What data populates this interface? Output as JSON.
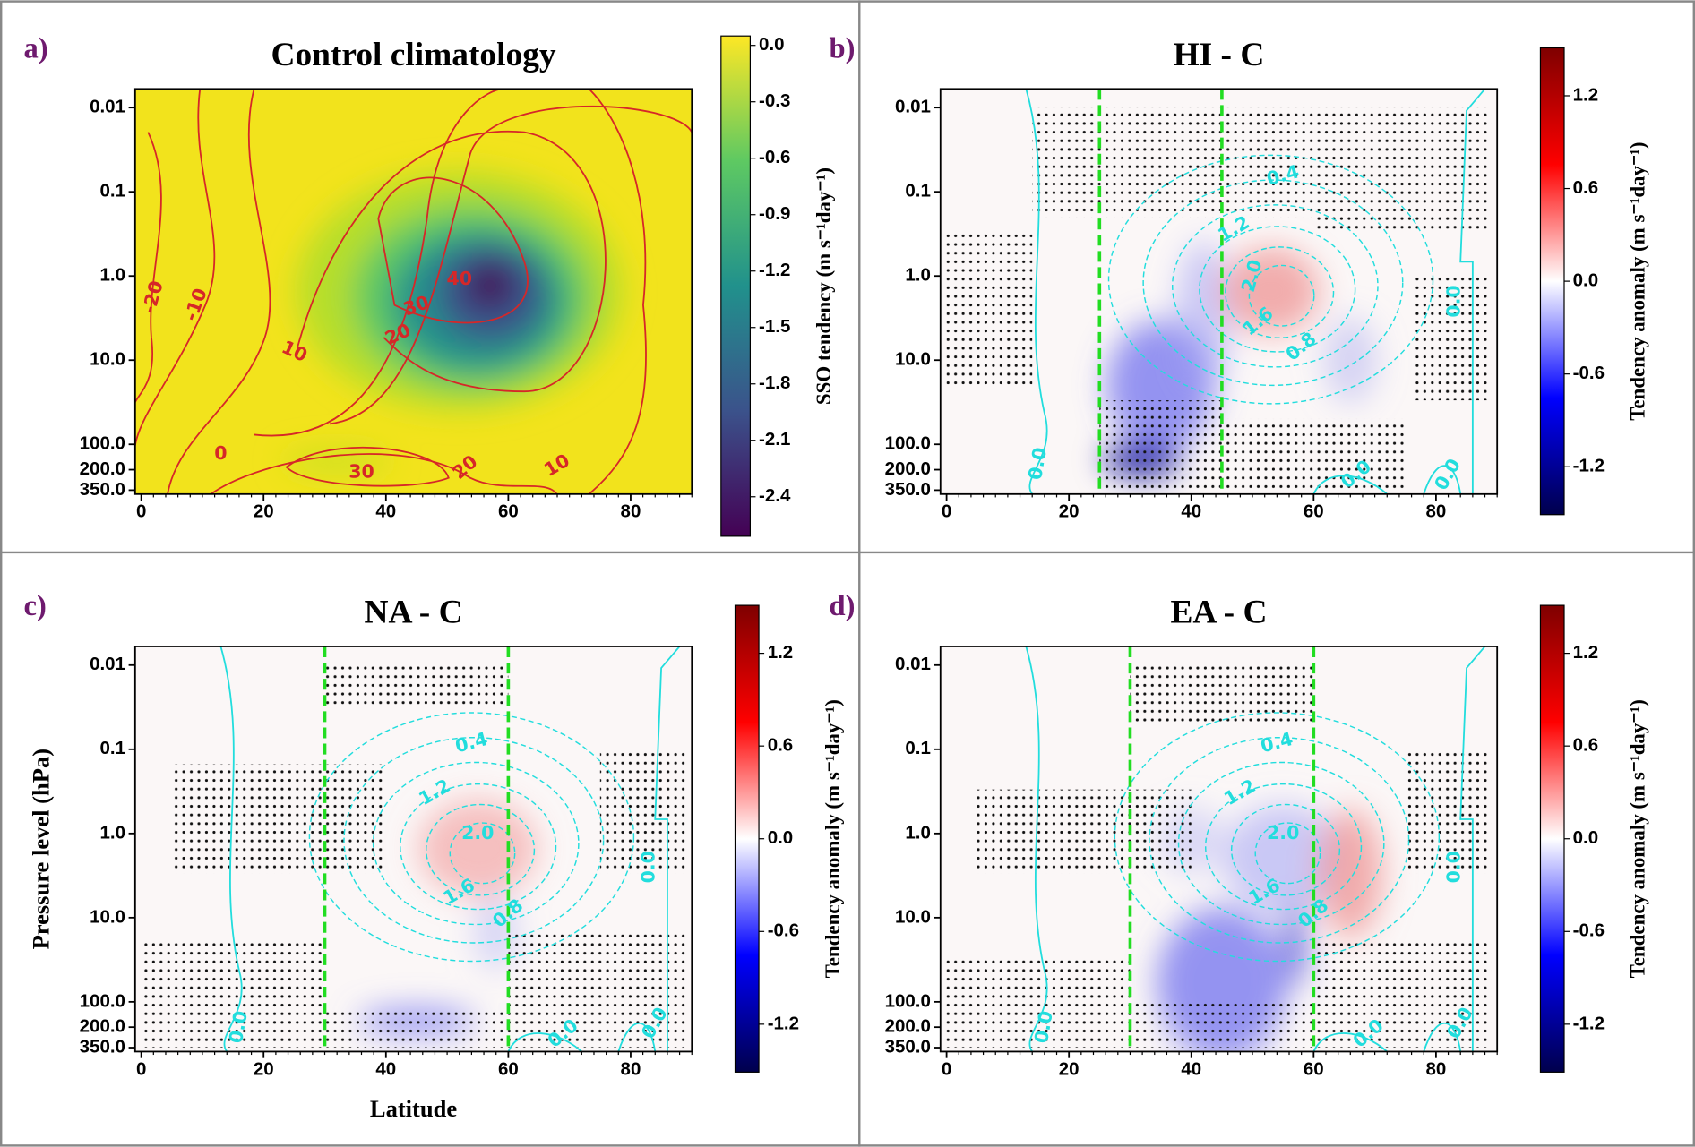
{
  "chart_data": [
    {
      "type": "contour",
      "panel_label": "a)",
      "title": "Control climatology",
      "xlim": [
        -1,
        90
      ],
      "xticks": [
        0,
        20,
        40,
        60,
        80
      ],
      "ylim": [
        390,
        0.006
      ],
      "log_y": true,
      "yticks": [
        0.01,
        0.1,
        {
          "value": 1,
          "label": "1.0"
        },
        {
          "value": 10,
          "label": "10.0"
        },
        {
          "value": 100,
          "label": "100.0"
        },
        {
          "value": 200,
          "label": "200.0"
        },
        {
          "value": 350,
          "label": "350.0"
        }
      ],
      "colorbar": {
        "label": "SSO tendency (m s⁻¹day⁻¹)",
        "colormap": "viridis",
        "lim": [
          -2.61,
          0.05
        ],
        "ticks": [
          {
            "value": 0,
            "label": "0.0"
          },
          -0.3,
          -0.6,
          -0.9,
          -1.2,
          -1.5,
          -1.8,
          -2.1,
          -2.4
        ]
      },
      "contour_color": "#d62728",
      "contour_labels": [
        -20,
        -10,
        10,
        20,
        30,
        40,
        0,
        30,
        20,
        10
      ]
    },
    {
      "type": "contour",
      "panel_label": "b)",
      "title": "HI - C",
      "xlim": [
        -1,
        90
      ],
      "xticks": [
        0,
        20,
        40,
        60,
        80
      ],
      "ylim": [
        390,
        0.006
      ],
      "log_y": true,
      "yticks": [
        0.01,
        0.1,
        {
          "value": 1,
          "label": "1.0"
        },
        {
          "value": 10,
          "label": "10.0"
        },
        {
          "value": 100,
          "label": "100.0"
        },
        {
          "value": 200,
          "label": "200.0"
        },
        {
          "value": 350,
          "label": "350.0"
        }
      ],
      "colorbar": {
        "label": "Tendency anomaly (m s⁻¹day⁻¹)",
        "colormap": "seismic",
        "lim": [
          -1.51,
          1.51
        ],
        "ticks": [
          1.2,
          0.6,
          {
            "value": 0,
            "label": "0.0"
          },
          -0.6,
          -1.2
        ]
      },
      "vlines": [
        25,
        45
      ],
      "vline_color": "#22dd22",
      "contour_color": "#22dddd",
      "contour_labels": [
        "0.4",
        "1.2",
        "2.0",
        "1.6",
        "0.8",
        "0.0",
        "0.0",
        "0.0",
        "0.0"
      ]
    },
    {
      "type": "contour",
      "panel_label": "c)",
      "title": "NA - C",
      "xlabel": "Latitude",
      "ylabel": "Pressure level (hPa)",
      "xlim": [
        -1,
        90
      ],
      "xticks": [
        0,
        20,
        40,
        60,
        80
      ],
      "ylim": [
        390,
        0.006
      ],
      "log_y": true,
      "yticks": [
        0.01,
        0.1,
        {
          "value": 1,
          "label": "1.0"
        },
        {
          "value": 10,
          "label": "10.0"
        },
        {
          "value": 100,
          "label": "100.0"
        },
        {
          "value": 200,
          "label": "200.0"
        },
        {
          "value": 350,
          "label": "350.0"
        }
      ],
      "colorbar": {
        "label": "Tendency anomaly (m s⁻¹day⁻¹)",
        "colormap": "seismic",
        "lim": [
          -1.51,
          1.51
        ],
        "ticks": [
          1.2,
          0.6,
          {
            "value": 0,
            "label": "0.0"
          },
          -0.6,
          -1.2
        ]
      },
      "vlines": [
        30,
        60
      ],
      "vline_color": "#22dd22",
      "contour_color": "#22dddd",
      "contour_labels": [
        "0.4",
        "1.2",
        "2.0",
        "1.6",
        "0.8",
        "0.0",
        "0.0",
        "0.0",
        "0.0"
      ]
    },
    {
      "type": "contour",
      "panel_label": "d)",
      "title": "EA - C",
      "xlim": [
        -1,
        90
      ],
      "xticks": [
        0,
        20,
        40,
        60,
        80
      ],
      "ylim": [
        390,
        0.006
      ],
      "log_y": true,
      "yticks": [
        0.01,
        0.1,
        {
          "value": 1,
          "label": "1.0"
        },
        {
          "value": 10,
          "label": "10.0"
        },
        {
          "value": 100,
          "label": "100.0"
        },
        {
          "value": 200,
          "label": "200.0"
        },
        {
          "value": 350,
          "label": "350.0"
        }
      ],
      "colorbar": {
        "label": "Tendency anomaly (m s⁻¹day⁻¹)",
        "colormap": "seismic",
        "lim": [
          -1.51,
          1.51
        ],
        "ticks": [
          1.2,
          0.6,
          {
            "value": 0,
            "label": "0.0"
          },
          -0.6,
          -1.2
        ]
      },
      "vlines": [
        30,
        60
      ],
      "vline_color": "#22dd22",
      "contour_color": "#22dddd",
      "contour_labels": [
        "0.4",
        "1.2",
        "2.0",
        "1.6",
        "0.8",
        "0.0",
        "0.0",
        "0.0",
        "0.0"
      ]
    }
  ]
}
